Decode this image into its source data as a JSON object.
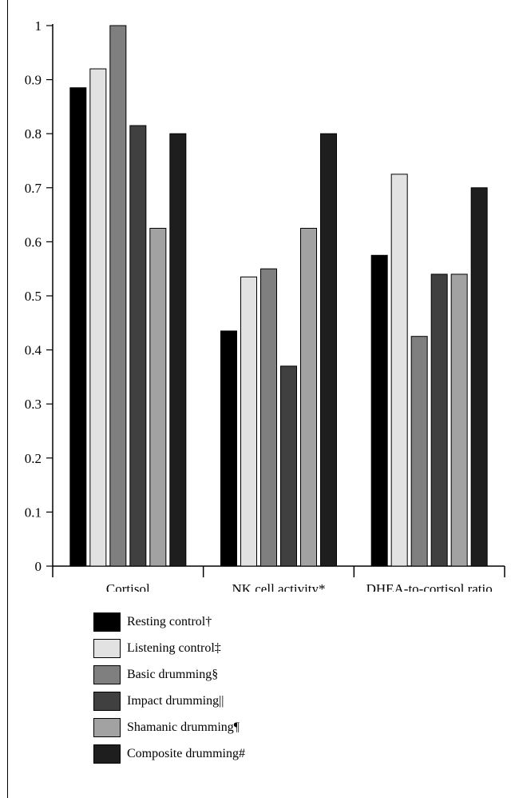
{
  "chart_data": {
    "type": "bar",
    "categories": [
      "Cortisol",
      "NK cell activity*",
      "DHEA-to-cortisol ratio"
    ],
    "series": [
      {
        "name": "Resting control†",
        "color": "#000000",
        "values": [
          0.885,
          0.435,
          0.575
        ]
      },
      {
        "name": "Listening control‡",
        "color": "#e2e2e2",
        "values": [
          0.92,
          0.535,
          0.725
        ]
      },
      {
        "name": "Basic drumming§",
        "color": "#7f7f7f",
        "values": [
          1.0,
          0.55,
          0.425
        ]
      },
      {
        "name": "Impact drumming||",
        "color": "#404040",
        "values": [
          0.815,
          0.37,
          0.54
        ]
      },
      {
        "name": "Shamanic drumming¶",
        "color": "#a2a2a2",
        "values": [
          0.625,
          0.625,
          0.54
        ]
      },
      {
        "name": "Composite drumming#",
        "color": "#1e1e1e",
        "values": [
          0.8,
          0.8,
          0.7
        ]
      }
    ],
    "ylim": [
      0,
      1
    ],
    "yticks": [
      "0",
      "0.1",
      "0.2",
      "0.3",
      "0.4",
      "0.5",
      "0.6",
      "0.7",
      "0.8",
      "0.9",
      "1"
    ],
    "legend_position": "bottom-left",
    "grid": false
  }
}
